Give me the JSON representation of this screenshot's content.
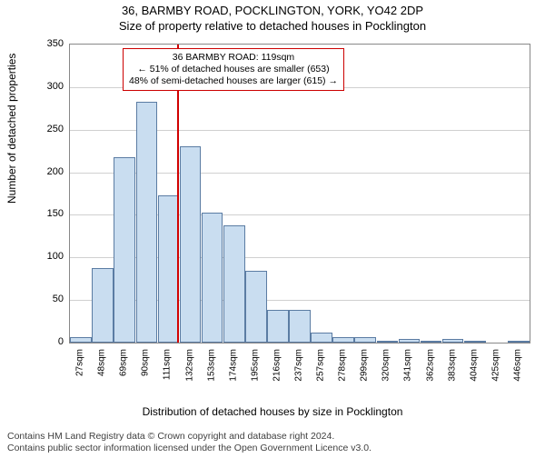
{
  "titles": {
    "main": "36, BARMBY ROAD, POCKLINGTON, YORK, YO42 2DP",
    "sub": "Size of property relative to detached houses in Pocklington"
  },
  "chart": {
    "type": "histogram",
    "ylabel": "Number of detached properties",
    "xlabel": "Distribution of detached houses by size in Pocklington",
    "ylim": [
      0,
      350
    ],
    "ytick_step": 50,
    "grid_color": "#d0d0d0",
    "axis_color": "#888888",
    "bar_fill": "#c9ddf0",
    "bar_stroke": "#5b7ca3",
    "refline_color": "#d00000",
    "refline_x_value": 119,
    "background_color": "#ffffff",
    "bars": [
      {
        "label": "27sqm",
        "x": 27,
        "value": 6
      },
      {
        "label": "48sqm",
        "x": 48,
        "value": 87
      },
      {
        "label": "69sqm",
        "x": 69,
        "value": 218
      },
      {
        "label": "90sqm",
        "x": 90,
        "value": 283
      },
      {
        "label": "111sqm",
        "x": 111,
        "value": 173
      },
      {
        "label": "132sqm",
        "x": 132,
        "value": 231
      },
      {
        "label": "153sqm",
        "x": 153,
        "value": 153
      },
      {
        "label": "174sqm",
        "x": 174,
        "value": 138
      },
      {
        "label": "195sqm",
        "x": 195,
        "value": 84
      },
      {
        "label": "216sqm",
        "x": 216,
        "value": 38
      },
      {
        "label": "237sqm",
        "x": 237,
        "value": 38
      },
      {
        "label": "257sqm",
        "x": 257,
        "value": 12
      },
      {
        "label": "278sqm",
        "x": 278,
        "value": 6
      },
      {
        "label": "299sqm",
        "x": 299,
        "value": 6
      },
      {
        "label": "320sqm",
        "x": 320,
        "value": 2
      },
      {
        "label": "341sqm",
        "x": 341,
        "value": 4
      },
      {
        "label": "362sqm",
        "x": 362,
        "value": 2
      },
      {
        "label": "383sqm",
        "x": 383,
        "value": 4
      },
      {
        "label": "404sqm",
        "x": 404,
        "value": 2
      },
      {
        "label": "425sqm",
        "x": 425,
        "value": 0
      },
      {
        "label": "446sqm",
        "x": 446,
        "value": 2
      }
    ],
    "annotation": {
      "line1": "36 BARMBY ROAD: 119sqm",
      "line2": "← 51% of detached houses are smaller (653)",
      "line3": "48% of semi-detached houses are larger (615) →"
    }
  },
  "footer": {
    "line1": "Contains HM Land Registry data © Crown copyright and database right 2024.",
    "line2": "Contains public sector information licensed under the Open Government Licence v3.0."
  }
}
